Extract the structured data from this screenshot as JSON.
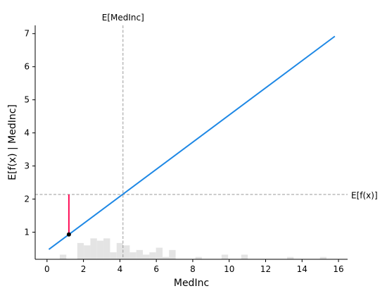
{
  "chart_data": {
    "type": "line",
    "xlabel": "MedInc",
    "ylabel": "E[f(x) | MedInc]",
    "xlim": [
      -0.65,
      16.5
    ],
    "ylim": [
      0.18,
      7.25
    ],
    "x_ticks": [
      0,
      2,
      4,
      6,
      8,
      10,
      12,
      14,
      16
    ],
    "y_ticks": [
      1,
      2,
      3,
      4,
      5,
      6,
      7
    ],
    "x_tick_labels": [
      "0",
      "2",
      "4",
      "6",
      "8",
      "10",
      "12",
      "14",
      "16"
    ],
    "y_tick_labels": [
      "1",
      "2",
      "3",
      "4",
      "5",
      "6",
      "7"
    ],
    "grid": false,
    "line": {
      "x": [
        0.1,
        15.8
      ],
      "y": [
        0.48,
        6.92
      ],
      "color": "#1e88e5"
    },
    "expected_x": {
      "label": "E[MedInc]",
      "value": 4.17
    },
    "expected_fx": {
      "label": "E[f(x)]",
      "value": 2.14
    },
    "highlight_point": {
      "x": 1.2,
      "y": 0.93,
      "y_from": 2.14,
      "segment_color": "#ff0d57",
      "point_color": "#000000"
    },
    "histogram": {
      "color": "#e4e4e4",
      "bin_width": 0.36,
      "bins": [
        {
          "x": 0.7,
          "count": 2
        },
        {
          "x": 1.66,
          "count": 7
        },
        {
          "x": 2.02,
          "count": 6
        },
        {
          "x": 2.38,
          "count": 9
        },
        {
          "x": 2.74,
          "count": 8
        },
        {
          "x": 3.1,
          "count": 9
        },
        {
          "x": 3.46,
          "count": 3
        },
        {
          "x": 3.82,
          "count": 7
        },
        {
          "x": 4.18,
          "count": 6
        },
        {
          "x": 4.54,
          "count": 3
        },
        {
          "x": 4.9,
          "count": 4
        },
        {
          "x": 5.26,
          "count": 2
        },
        {
          "x": 5.62,
          "count": 3
        },
        {
          "x": 5.98,
          "count": 5
        },
        {
          "x": 6.34,
          "count": 1
        },
        {
          "x": 6.7,
          "count": 4
        },
        {
          "x": 8.14,
          "count": 1
        },
        {
          "x": 9.58,
          "count": 2
        },
        {
          "x": 10.66,
          "count": 2
        },
        {
          "x": 13.18,
          "count": 1
        },
        {
          "x": 14.98,
          "count": 1
        }
      ]
    }
  }
}
